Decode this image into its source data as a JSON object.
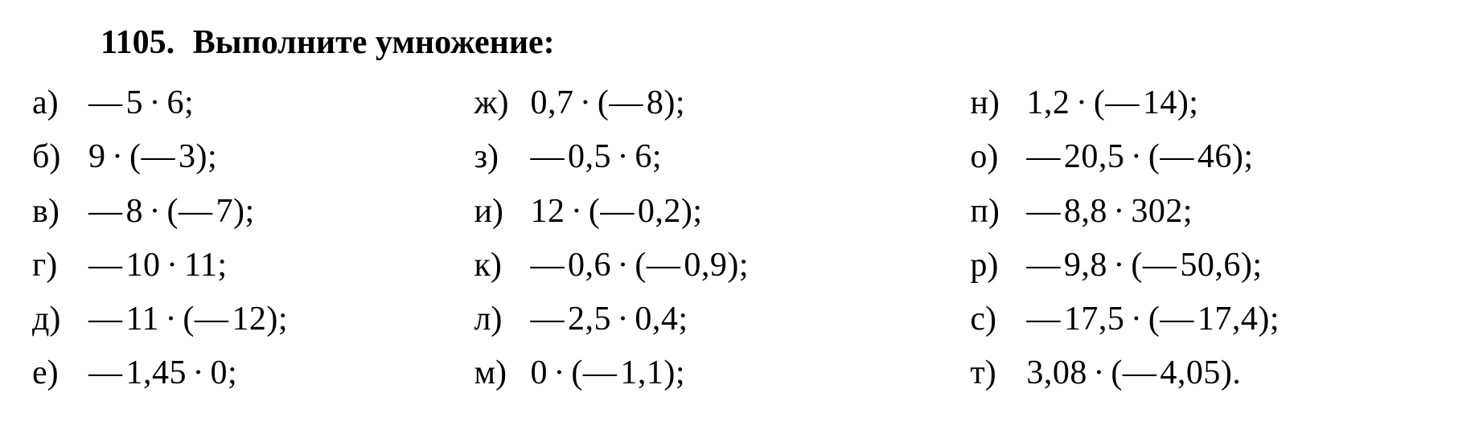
{
  "problem": {
    "number": "1105.",
    "title": "Выполните умножение:"
  },
  "columns": [
    {
      "items": [
        {
          "label": "а)",
          "expr": "— 5 · 6;"
        },
        {
          "label": "б)",
          "expr": "9 · (— 3);"
        },
        {
          "label": "в)",
          "expr": "— 8 · (— 7);"
        },
        {
          "label": "г)",
          "expr": "— 10 · 11;"
        },
        {
          "label": "д)",
          "expr": "— 11 · (— 12);"
        },
        {
          "label": "е)",
          "expr": "— 1,45 · 0;"
        }
      ]
    },
    {
      "items": [
        {
          "label": "ж)",
          "expr": "0,7 · (— 8);"
        },
        {
          "label": "з)",
          "expr": "— 0,5 · 6;"
        },
        {
          "label": "и)",
          "expr": "12 · (— 0,2);"
        },
        {
          "label": "к)",
          "expr": "— 0,6 · (— 0,9);"
        },
        {
          "label": "л)",
          "expr": "— 2,5 · 0,4;"
        },
        {
          "label": "м)",
          "expr": "0 · (— 1,1);"
        }
      ]
    },
    {
      "items": [
        {
          "label": "н)",
          "expr": "1,2 · (— 14);"
        },
        {
          "label": "о)",
          "expr": "— 20,5 · (— 46);"
        },
        {
          "label": "п)",
          "expr": "— 8,8 · 302;"
        },
        {
          "label": "р)",
          "expr": "— 9,8 · (— 50,6);"
        },
        {
          "label": "с)",
          "expr": "— 17,5 · (— 17,4);"
        },
        {
          "label": "т)",
          "expr": "3,08 · (— 4,05)."
        }
      ]
    }
  ],
  "style": {
    "font_family": "Times New Roman",
    "font_size_pt": 32,
    "text_color": "#000000",
    "background_color": "#ffffff",
    "bold_title": true
  }
}
